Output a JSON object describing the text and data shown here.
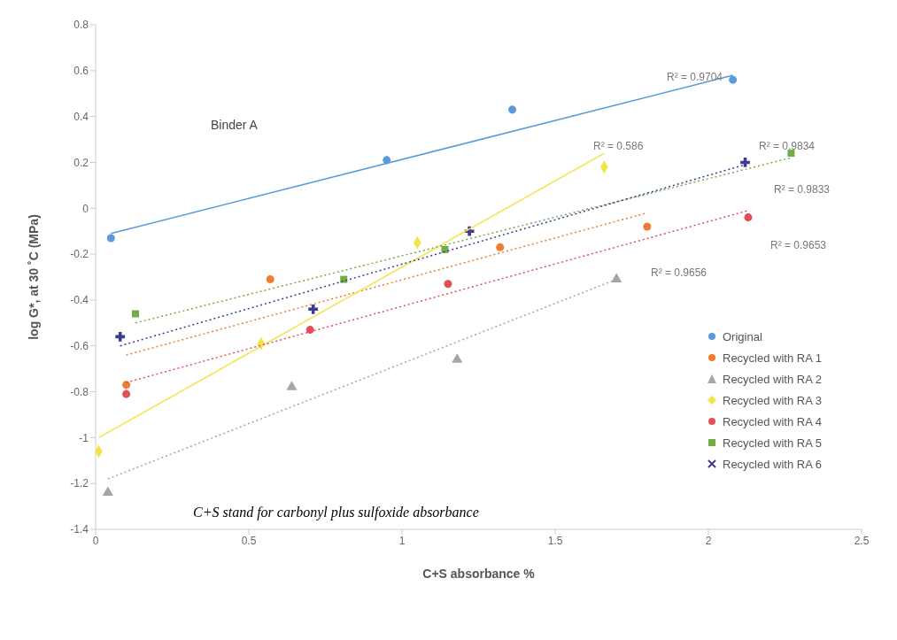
{
  "chart_data": {
    "type": "scatter",
    "xlabel": "C+S absorbance %",
    "ylabel": "log G*, at 30 ˚C (MPa)",
    "xlim": [
      0,
      2.5
    ],
    "xticks": [
      0,
      0.5,
      1,
      1.5,
      2,
      2.5
    ],
    "ylim": [
      -1.4,
      0.8
    ],
    "yticks": [
      -1.4,
      -1.2,
      -1,
      -0.8,
      -0.6,
      -0.4,
      -0.2,
      0,
      0.2,
      0.4,
      0.6,
      0.8
    ],
    "grid": false,
    "legend": "right",
    "series": [
      {
        "name": "Original",
        "color": "#5b9bd5",
        "marker": "circle",
        "x": [
          0.05,
          0.95,
          1.36,
          2.08
        ],
        "values": [
          -0.13,
          0.21,
          0.43,
          0.56
        ]
      },
      {
        "name": "Recycled with RA 1",
        "color": "#ed7d31",
        "marker": "circle",
        "x": [
          0.1,
          0.57,
          1.32,
          1.8
        ],
        "values": [
          -0.77,
          -0.31,
          -0.17,
          -0.08
        ]
      },
      {
        "name": "Recycled with RA 2",
        "color": "#a5a5a5",
        "marker": "triangle",
        "x": [
          0.04,
          0.64,
          1.18,
          1.7
        ],
        "values": [
          -1.24,
          -0.78,
          -0.66,
          -0.31
        ]
      },
      {
        "name": "Recycled with RA 3",
        "color": "#f2e34a",
        "marker": "diamond",
        "x": [
          0.01,
          0.54,
          1.05,
          1.66
        ],
        "values": [
          -1.06,
          -0.59,
          -0.15,
          0.18
        ]
      },
      {
        "name": "Recycled with RA 4",
        "color": "#e0505a",
        "marker": "circle",
        "x": [
          0.1,
          0.7,
          1.15,
          2.13
        ],
        "values": [
          -0.81,
          -0.53,
          -0.33,
          -0.04
        ]
      },
      {
        "name": "Recycled with RA 5",
        "color": "#70ad47",
        "marker": "square",
        "x": [
          0.13,
          0.81,
          1.14,
          2.27
        ],
        "values": [
          -0.46,
          -0.31,
          -0.18,
          0.24
        ]
      },
      {
        "name": "Recycled with RA 6",
        "color": "#3b3b8f",
        "marker": "cross",
        "x": [
          0.08,
          0.71,
          1.22,
          2.12
        ],
        "values": [
          -0.56,
          -0.44,
          -0.1,
          0.2
        ]
      },
      {
        "type": "line",
        "color": "#5b9bd5",
        "line_style": "solid",
        "x": [
          0.05,
          2.08
        ],
        "values": [
          -0.11,
          0.58
        ]
      },
      {
        "type": "line",
        "color": "#ed7d31",
        "line_style": "dotted",
        "x": [
          0.1,
          1.8
        ],
        "values": [
          -0.64,
          -0.02
        ]
      },
      {
        "type": "line",
        "color": "#a5a5a5",
        "line_style": "dotted",
        "x": [
          0.04,
          1.7
        ],
        "values": [
          -1.18,
          -0.31
        ]
      },
      {
        "type": "line",
        "color": "#f2e34a",
        "line_style": "solid",
        "x": [
          0.01,
          1.66
        ],
        "values": [
          -1.0,
          0.24
        ]
      },
      {
        "type": "line",
        "color": "#e0505a",
        "line_style": "dotted",
        "x": [
          0.1,
          2.13
        ],
        "values": [
          -0.76,
          -0.01
        ]
      },
      {
        "type": "line",
        "color": "#70ad47",
        "line_style": "dotted",
        "x": [
          0.13,
          2.27
        ],
        "values": [
          -0.5,
          0.22
        ]
      },
      {
        "type": "line",
        "color": "#3b3b8f",
        "line_style": "dotted",
        "x": [
          0.08,
          2.12
        ],
        "values": [
          -0.6,
          0.19
        ]
      }
    ],
    "annotations": [
      "Binder A",
      "C+S stand for carbonyl plus sulfoxide absorbance",
      "R² = 0.9704",
      "R² = 0.586",
      "R² = 0.9834",
      "R² = 0.9833",
      "R² = 0.9653",
      "R² = 0.9656"
    ]
  }
}
